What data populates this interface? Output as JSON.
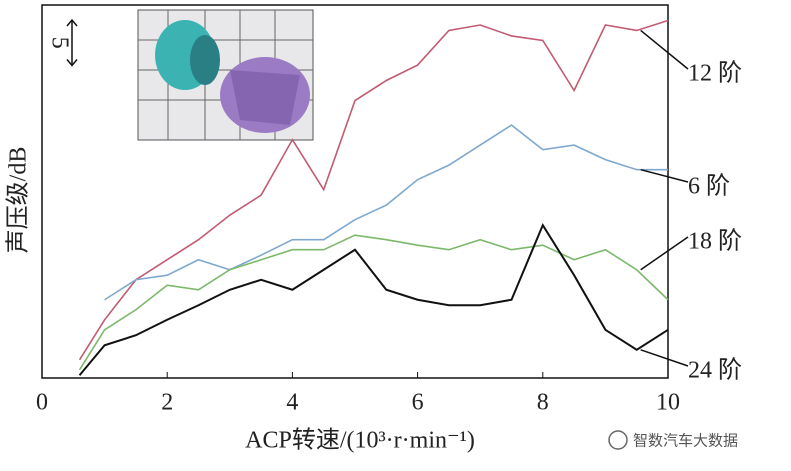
{
  "chart_data": {
    "type": "line",
    "x_label": "ACP转速/(10³·r·min⁻¹)",
    "y_label": "声压级/dB",
    "scale_bar": 5,
    "watermark": "智数汽车大数据",
    "x": [
      0.6,
      1,
      1.5,
      2,
      2.5,
      3,
      3.5,
      4,
      4.5,
      5,
      5.5,
      6,
      6.5,
      7,
      7.5,
      8,
      8.5,
      9,
      9.5,
      10
    ],
    "xlim": [
      0,
      10
    ],
    "xticks": [
      0,
      2,
      4,
      6,
      8,
      10
    ],
    "ylim": [
      0,
      41
    ],
    "series": [
      {
        "name": "12 阶",
        "color": "#c25a72",
        "values": [
          2.0,
          6.4,
          10.8,
          13.0,
          15.2,
          17.9,
          20.1,
          26.2,
          20.7,
          30.5,
          32.7,
          34.4,
          38.2,
          38.8,
          37.6,
          37.1,
          31.6,
          38.8,
          38.2,
          39.3
        ]
      },
      {
        "name": "6 阶",
        "color": "#7fa8cf",
        "values": [
          null,
          8.6,
          10.8,
          11.3,
          13.0,
          11.9,
          13.5,
          15.2,
          15.2,
          17.4,
          19.0,
          21.8,
          23.4,
          25.6,
          27.8,
          25.1,
          25.6,
          24.0,
          22.9,
          22.9
        ]
      },
      {
        "name": "18 阶",
        "color": "#7cb86a",
        "values": [
          0.9,
          5.3,
          7.5,
          10.2,
          9.7,
          11.9,
          13.0,
          14.1,
          14.1,
          15.7,
          15.2,
          14.6,
          14.1,
          15.2,
          14.1,
          14.6,
          13.0,
          14.1,
          11.9,
          8.6
        ]
      },
      {
        "name": "24 阶",
        "color": "#111111",
        "values": [
          0.3,
          3.6,
          4.7,
          6.4,
          8.0,
          9.7,
          10.8,
          9.7,
          11.9,
          14.1,
          9.7,
          8.6,
          8.0,
          8.0,
          8.6,
          16.8,
          11.3,
          5.3,
          3.1,
          5.3
        ]
      }
    ]
  }
}
